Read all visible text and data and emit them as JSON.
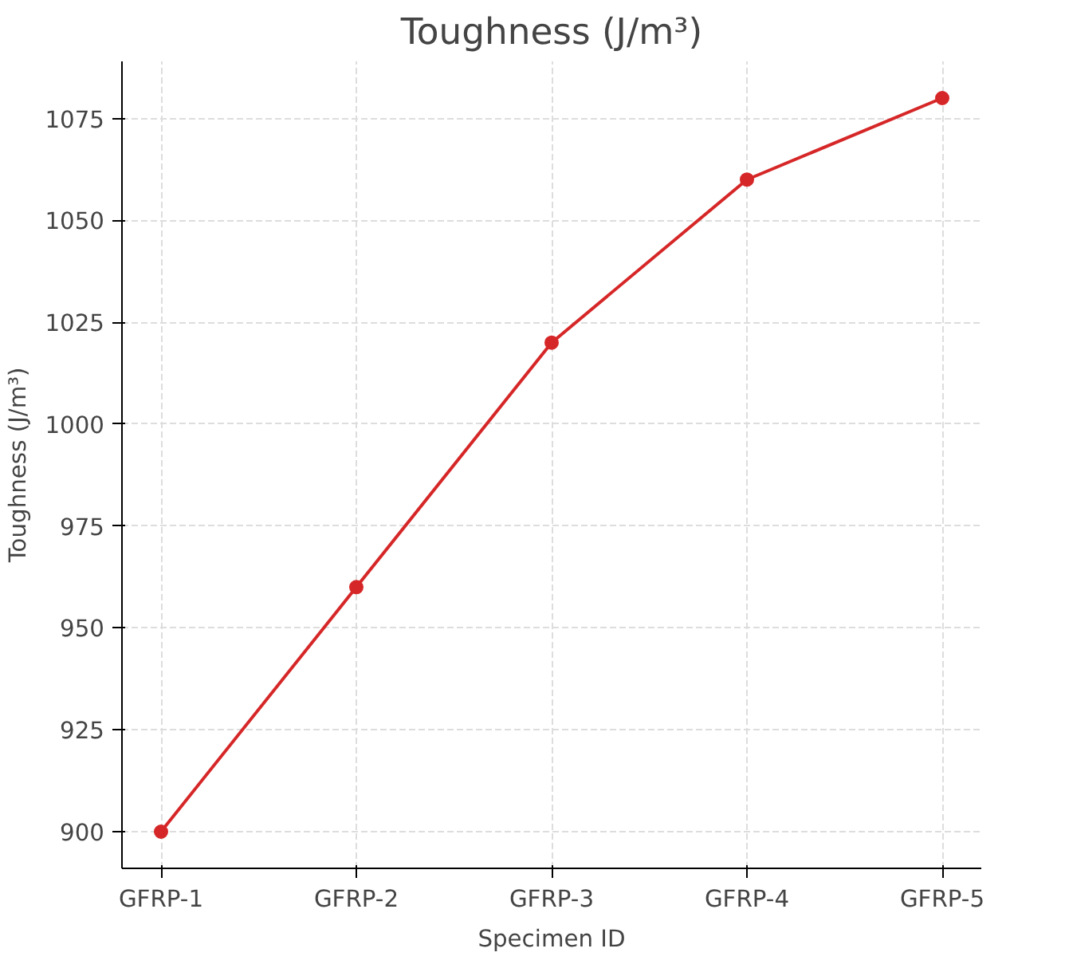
{
  "chart_data": {
    "type": "line",
    "title": "Toughness (J/m³)",
    "xlabel": "Specimen ID",
    "ylabel": "Toughness (J/m³)",
    "categories": [
      "GFRP-1",
      "GFRP-2",
      "GFRP-3",
      "GFRP-4",
      "GFRP-5"
    ],
    "series": [
      {
        "color": "#d62728",
        "values": [
          900,
          960,
          1020,
          1060,
          1080
        ]
      }
    ],
    "ylim": [
      891,
      1089
    ],
    "yticks": [
      900,
      925,
      950,
      975,
      1000,
      1025,
      1050,
      1075
    ],
    "grid": true,
    "marker": "circle",
    "line_style": "solid"
  }
}
